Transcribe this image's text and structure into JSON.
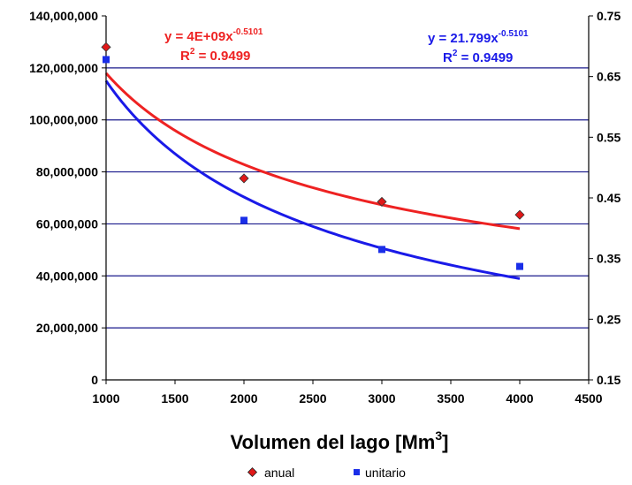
{
  "chart_data": {
    "type": "scatter",
    "xlabel": "Volumen del lago [Mm",
    "xlabel_superscript": "3",
    "xlabel_suffix": "]",
    "xlim": [
      1000,
      4500
    ],
    "x_ticks": [
      "1000",
      "1500",
      "2000",
      "2500",
      "3000",
      "3500",
      "4000",
      "4500"
    ],
    "ylim_left": [
      0,
      140000000
    ],
    "y_ticks_left": [
      "0",
      "20,000,000",
      "40,000,000",
      "60,000,000",
      "80,000,000",
      "100,000,000",
      "120,000,000",
      "140,000,000"
    ],
    "ylim_right": [
      0.15,
      0.75
    ],
    "y_ticks_right": [
      "0.15",
      "0.25",
      "0.35",
      "0.45",
      "0.55",
      "0.65",
      "0.75"
    ],
    "grid": "horizontal",
    "legend_position": "bottom",
    "series": [
      {
        "name": "anual",
        "axis": "left",
        "marker": "diamond",
        "color": "#e01818",
        "x": [
          1000,
          2000,
          3000,
          4000
        ],
        "y": [
          128000000,
          77500000,
          68500000,
          63500000
        ],
        "trendline": {
          "type": "power",
          "a": 4000000000,
          "b": -0.5101,
          "x_range": [
            1000,
            4000
          ],
          "color": "#ee2222",
          "equation_prefix": "y = 4E+09x",
          "equation_exponent": "-0.5101",
          "r2_label": "R",
          "r2_sup": "2",
          "r2_value": " = 0.9499"
        }
      },
      {
        "name": "unitario",
        "axis": "right",
        "marker": "square",
        "color": "#1a2ee8",
        "x": [
          1000,
          2000,
          3000,
          4000
        ],
        "y": [
          0.678,
          0.413,
          0.365,
          0.337
        ],
        "trendline": {
          "type": "power",
          "a": 21.799,
          "b": -0.5101,
          "x_range": [
            1000,
            4000
          ],
          "color": "#1a1ae8",
          "equation_prefix": "y = 21.799x",
          "equation_exponent": "-0.5101",
          "r2_label": "R",
          "r2_sup": "2",
          "r2_value": " = 0.9499"
        }
      }
    ]
  }
}
